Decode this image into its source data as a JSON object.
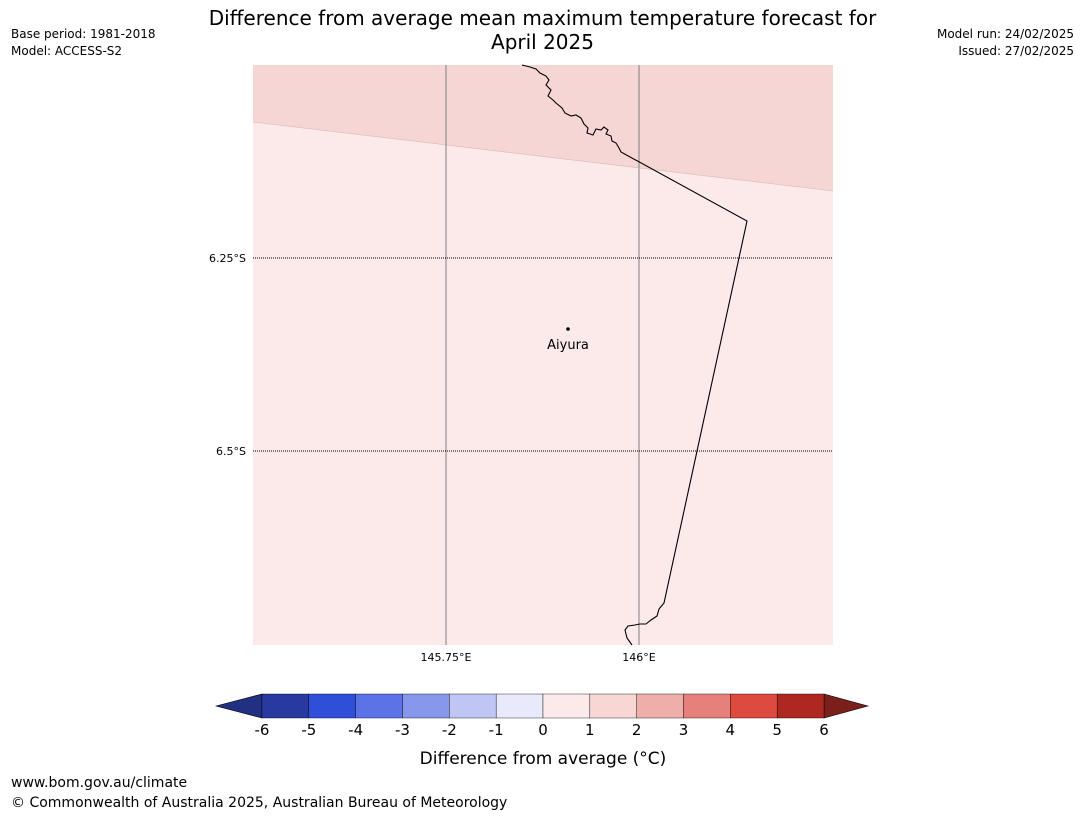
{
  "header": {
    "base_period": "Base period: 1981-2018",
    "model": "Model: ACCESS-S2",
    "model_run": "Model run: 24/02/2025",
    "issued": "Issued: 27/02/2025"
  },
  "title": {
    "line1": "Difference from average mean maximum temperature forecast for",
    "line2": "April 2025"
  },
  "map": {
    "lat_labels": [
      "6.25°S",
      "6.5°S"
    ],
    "lon_labels": [
      "145.75°E",
      "146°E"
    ],
    "place": {
      "name": "Aiyura",
      "lon": 145.905,
      "lat": -6.34
    },
    "shading": {
      "upper_band": "1 to 2",
      "main_area": "0 to 1"
    }
  },
  "colorbar": {
    "ticks": [
      "-6",
      "-5",
      "-4",
      "-3",
      "-2",
      "-1",
      "0",
      "1",
      "2",
      "3",
      "4",
      "5",
      "6"
    ],
    "label": "Difference from average (°C)",
    "colors": [
      "#28399f",
      "#304fd9",
      "#5b73e6",
      "#8797ec",
      "#bfc6f4",
      "#e8eafc",
      "#fbeae9",
      "#f7d6d4",
      "#eeaeaa",
      "#e6807a",
      "#dc4a40",
      "#ac2820"
    ],
    "under_color": "#223081",
    "over_color": "#7a1f19"
  },
  "footer": {
    "url": "www.bom.gov.au/climate",
    "copyright": "© Commonwealth of Australia 2025, Australian Bureau of Meteorology"
  }
}
